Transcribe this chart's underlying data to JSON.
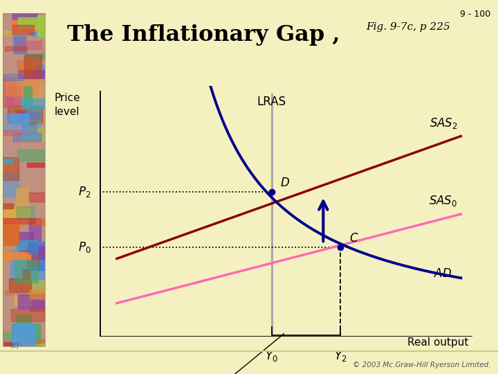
{
  "bg_color": "#f5f0c0",
  "slide_num": "9 - 100",
  "title_main": "The Inflationary Gap ,",
  "title_sub": "Fig. 9-7c, p 225",
  "xlabel": "Real output",
  "copyright": "© 2003 Mc.Graw-Hill Ryerson Limited.",
  "lras_x": 5.0,
  "y0_x": 5.0,
  "y2_x": 7.0,
  "p0_y": 3.2,
  "p2_y": 5.2,
  "xmin": 0,
  "xmax": 11,
  "ymin": 0,
  "ymax": 9,
  "sas0_x1": 0.5,
  "sas0_x2": 10.5,
  "sas0_y1": 1.2,
  "sas0_y2": 4.4,
  "sas2_x1": 0.5,
  "sas2_x2": 10.5,
  "sas2_y1": 2.8,
  "sas2_y2": 7.2,
  "ad_A": 20.0,
  "ad_e": 1.0,
  "ad_xstart": 2.1,
  "ad_xend": 10.5,
  "sas0_color": "#ff69b4",
  "sas2_color": "#8b0000",
  "ad_color": "#00008b",
  "lras_color": "#aaaaaa",
  "arrow_color": "#00008b",
  "dot_color": "#00008b",
  "bracket_color": "#111111",
  "left_strip_color": "#c09080"
}
